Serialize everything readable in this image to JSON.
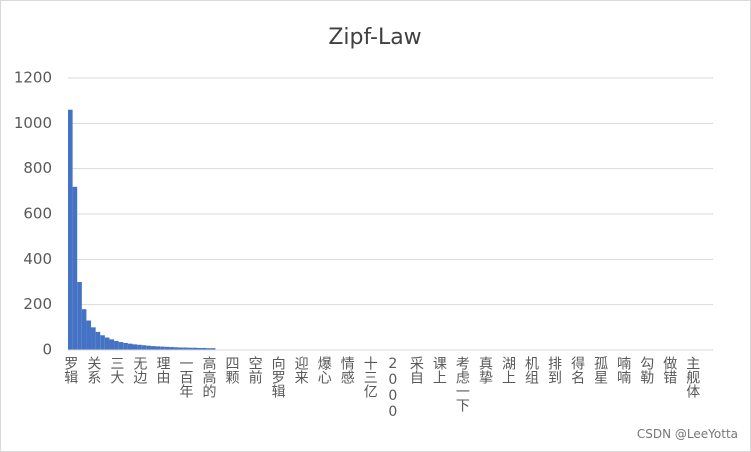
{
  "chart_data": {
    "type": "bar",
    "title": "Zipf-Law",
    "watermark": "CSDN @LeeYotta",
    "color": "#4472c4",
    "ylim": [
      0,
      1200
    ],
    "yticks": [
      0,
      200,
      400,
      600,
      800,
      1000,
      1200
    ],
    "grid": true,
    "categories": [
      "罗辑",
      null,
      null,
      null,
      null,
      "关系",
      null,
      null,
      null,
      null,
      "三大",
      null,
      null,
      null,
      null,
      "无边",
      null,
      null,
      null,
      null,
      "理由",
      null,
      null,
      null,
      null,
      "一百年",
      null,
      null,
      null,
      null,
      "高高的",
      null,
      null,
      null,
      null,
      "四颗",
      null,
      null,
      null,
      null,
      "空前",
      null,
      null,
      null,
      null,
      "向罗辑",
      null,
      null,
      null,
      null,
      "迎来",
      null,
      null,
      null,
      null,
      "爆心",
      null,
      null,
      null,
      null,
      "情感",
      null,
      null,
      null,
      null,
      "十三亿",
      null,
      null,
      null,
      null,
      "2000",
      null,
      null,
      null,
      null,
      "采自",
      null,
      null,
      null,
      null,
      "课上",
      null,
      null,
      null,
      null,
      "考虑一下",
      null,
      null,
      null,
      null,
      "真挚",
      null,
      null,
      null,
      null,
      "湖上",
      null,
      null,
      null,
      null,
      "机组",
      null,
      null,
      null,
      null,
      "排到",
      null,
      null,
      null,
      null,
      "得名",
      null,
      null,
      null,
      null,
      "孤星",
      null,
      null,
      null,
      null,
      "喃喃",
      null,
      null,
      null,
      null,
      "勾勒",
      null,
      null,
      null,
      null,
      "做错",
      null,
      null,
      null,
      null,
      "主舰体",
      null,
      null,
      null,
      null
    ],
    "values": [
      1060,
      720,
      300,
      180,
      130,
      100,
      80,
      65,
      55,
      47,
      40,
      35,
      31,
      28,
      25,
      23,
      21,
      19,
      17,
      16,
      15,
      14,
      13,
      12,
      11,
      11,
      10,
      10,
      9,
      9,
      8,
      8,
      1,
      1,
      1,
      1,
      1,
      1,
      1,
      1,
      1,
      1,
      1,
      1,
      1,
      1,
      1,
      1,
      1,
      1,
      1,
      1,
      1,
      1,
      1,
      1,
      1,
      1,
      1,
      1,
      1,
      1,
      1,
      1,
      1,
      1,
      1,
      1,
      1,
      1,
      1,
      1,
      1,
      1,
      1,
      1,
      1,
      1,
      1,
      1,
      1,
      1,
      1,
      1,
      1,
      1,
      1,
      1,
      1,
      1,
      1,
      1,
      1,
      1,
      1,
      1,
      1,
      1,
      1,
      1,
      1,
      1,
      1,
      1,
      1,
      1,
      1,
      1,
      1,
      1,
      1,
      1,
      1,
      1,
      1,
      1,
      1,
      1,
      1,
      1,
      1,
      1,
      1,
      1,
      1,
      1,
      1,
      1,
      1,
      1,
      1,
      1,
      1,
      1,
      1,
      1,
      1,
      1,
      1,
      1
    ]
  }
}
